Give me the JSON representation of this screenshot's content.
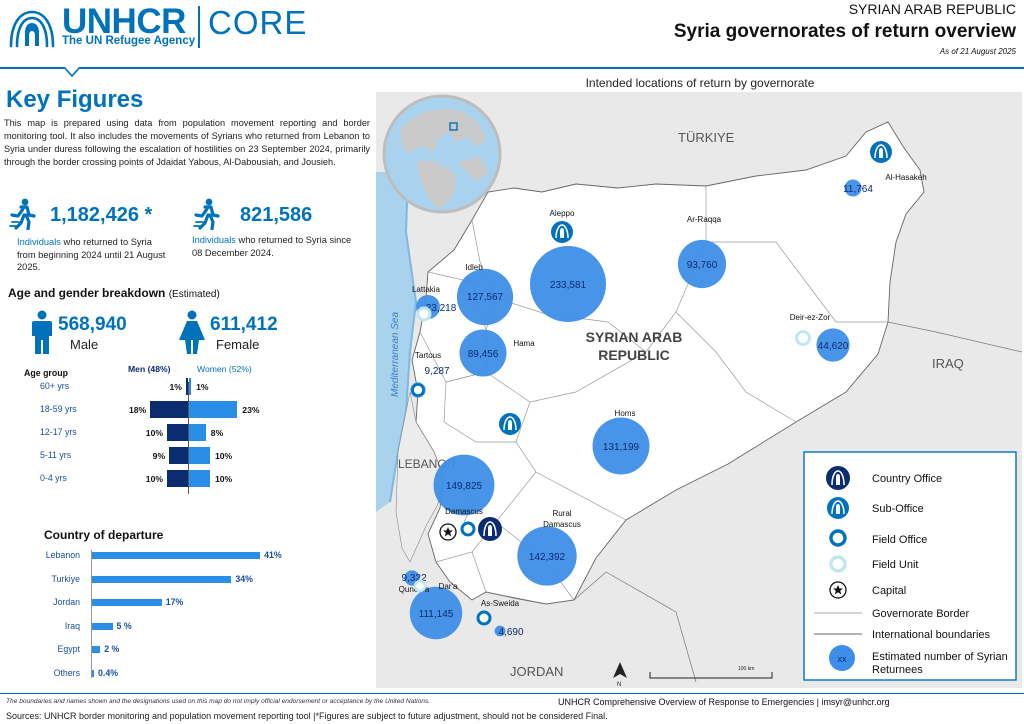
{
  "header": {
    "logo_name": "UNHCR",
    "logo_sub": "The UN Refugee Agency",
    "logo_core": "CORE",
    "country": "SYRIAN ARAB REPUBLIC",
    "title": "Syria governorates of return overview",
    "date": "As of 21 August 2025"
  },
  "key_figures": {
    "title": "Key Figures",
    "intro": "This map is prepared using data from population movement reporting and border monitoring tool. It also includes the movements of Syrians who returned from Lebanon to Syria under duress following the escalation of hostilities on 23 September 2024, primarily through the border crossing points of Jdaidat Yabous, Al-Dabousiah, and Jousieh.",
    "stat1": {
      "value": "1,182,426 *",
      "highlight": "Individuals",
      "rest": " who returned to Syria from beginning 2024 until 21 August 2025."
    },
    "stat2": {
      "value": "821,586",
      "highlight": "Individuals",
      "rest": " who returned to Syria since 08 December 2024."
    }
  },
  "breakdown": {
    "title": "Age and gender breakdown",
    "qualifier": "(Estimated)",
    "male": {
      "value": "568,940",
      "label": "Male"
    },
    "female": {
      "value": "611,412",
      "label": "Female"
    },
    "age_group_label": "Age group",
    "men_label": "Men (48%)",
    "women_label": "Women (52%)",
    "rows": [
      {
        "group": "60+ yrs",
        "men": 1,
        "women": 1,
        "men_label": "1%",
        "women_label": "1%"
      },
      {
        "group": "18-59 yrs",
        "men": 18,
        "women": 23,
        "men_label": "18%",
        "women_label": "23%"
      },
      {
        "group": "12-17 yrs",
        "men": 10,
        "women": 8,
        "men_label": "10%",
        "women_label": "8%"
      },
      {
        "group": "5-11 yrs",
        "men": 9,
        "women": 10,
        "men_label": "9%",
        "women_label": "10%"
      },
      {
        "group": "0-4 yrs",
        "men": 10,
        "women": 10,
        "men_label": "10%",
        "women_label": "10%"
      }
    ]
  },
  "departure": {
    "title": "Country of departure",
    "rows": [
      {
        "country": "Lebanon",
        "value": 41,
        "label": "41%"
      },
      {
        "country": "Turkiye",
        "value": 34,
        "label": "34%"
      },
      {
        "country": "Jordan",
        "value": 17,
        "label": "17%"
      },
      {
        "country": "Iraq",
        "value": 5,
        "label": "5 %"
      },
      {
        "country": "Egypt",
        "value": 2,
        "label": "2 %"
      },
      {
        "country": "Others",
        "value": 0.4,
        "label": "0.4%"
      }
    ]
  },
  "map": {
    "heading": "Intended locations of return by governorate",
    "neighbours": {
      "turkiye": "TÜRKIYE",
      "iraq": "IRAQ",
      "lebanon": "LEBANON",
      "jordan": "JORDAN",
      "sea": "Mediterranean Sea"
    },
    "country_label_1": "SYRIAN ARAB",
    "country_label_2": "REPUBLIC",
    "governorates": [
      {
        "name": "Aleppo",
        "value": "233,581"
      },
      {
        "name": "Idleb",
        "value": "127,567"
      },
      {
        "name": "Lattakia",
        "value": "23,218"
      },
      {
        "name": "Hama",
        "value": "89,456"
      },
      {
        "name": "Tartous",
        "value": "9,287"
      },
      {
        "name": "Homs",
        "value": "131,199"
      },
      {
        "name": "Ar-Raqqa",
        "value": "93,760"
      },
      {
        "name": "Al-Hasakeh",
        "value": "11,764"
      },
      {
        "name": "Deir-ez-Zor",
        "value": "44,620"
      },
      {
        "name": "Damascus",
        "value": "149,825"
      },
      {
        "name": "Rural Damascus",
        "value": "142,392"
      },
      {
        "name": "Quneitra",
        "value": "9,322"
      },
      {
        "name": "Dar'a",
        "value": "111,145"
      },
      {
        "name": "As-Sweida",
        "value": "4,690"
      }
    ],
    "legend": {
      "country_office": "Country Office",
      "sub_office": "Sub-Office",
      "field_office": "Field Office",
      "field_unit": "Field Unit",
      "capital": "Capital",
      "gov_border": "Governorate Border",
      "intl_border": "International boundaries",
      "returnees_1": "Estimated number of Syrian",
      "returnees_2": "Returnees",
      "returnees_symbol": "xx"
    },
    "scale_label": "100 km",
    "north_label": "N"
  },
  "footer": {
    "disclaimer": "The boundaries and names shown and the designations used on this map do not imply official endorsement or acceptance by the United Nations.",
    "mid": "UNHCR Comprehensive Overview of Response to Emergencies  |  imsyr@unhcr.org",
    "sources": "Sources: UNHCR border monitoring and population movement reporting tool  |*Figures are subject to future adjustment, should not be considered Final."
  },
  "colors": {
    "brand": "#0072bc",
    "navy": "#0b2c6f",
    "bubble": "#3d8ee8",
    "bar": "#2a8ee6"
  }
}
